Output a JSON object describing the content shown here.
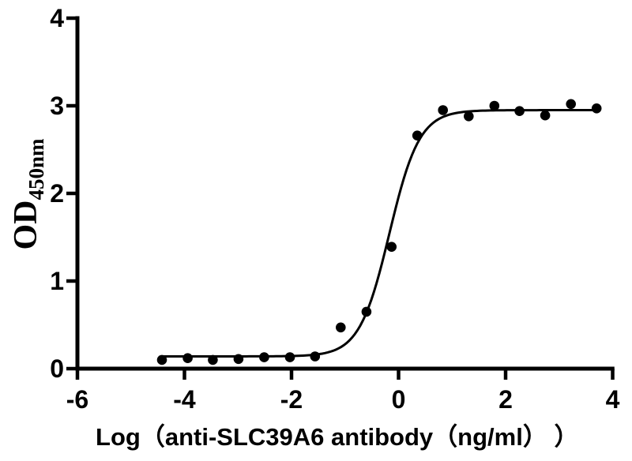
{
  "chart_data": {
    "type": "scatter",
    "title": "",
    "xlabel": "Log（anti-SLC39A6 antibody（ng/ml） ）",
    "ylabel_main": "OD",
    "ylabel_sub": "450nm",
    "xlim": [
      -6,
      4
    ],
    "ylim": [
      0,
      4
    ],
    "x_ticks": [
      -6,
      -4,
      -2,
      0,
      2,
      4
    ],
    "x_tick_labels": [
      "-6",
      "-4",
      "-2",
      "0",
      "2",
      "4"
    ],
    "y_ticks": [
      0,
      1,
      2,
      3,
      4
    ],
    "y_tick_labels": [
      "0",
      "1",
      "2",
      "3",
      "4"
    ],
    "grid": false,
    "legend_position": "none",
    "axis_color": "#000000",
    "marker_color": "#000000",
    "curve_color": "#000000",
    "background_color": "#ffffff",
    "points": [
      {
        "x": -4.42,
        "y": 0.1
      },
      {
        "x": -3.94,
        "y": 0.12
      },
      {
        "x": -3.47,
        "y": 0.1
      },
      {
        "x": -2.99,
        "y": 0.11
      },
      {
        "x": -2.51,
        "y": 0.13
      },
      {
        "x": -2.03,
        "y": 0.13
      },
      {
        "x": -1.56,
        "y": 0.14
      },
      {
        "x": -1.08,
        "y": 0.47
      },
      {
        "x": -0.6,
        "y": 0.65
      },
      {
        "x": -0.13,
        "y": 1.39
      },
      {
        "x": 0.35,
        "y": 2.66
      },
      {
        "x": 0.83,
        "y": 2.95
      },
      {
        "x": 1.31,
        "y": 2.88
      },
      {
        "x": 1.79,
        "y": 3.0
      },
      {
        "x": 2.26,
        "y": 2.94
      },
      {
        "x": 2.74,
        "y": 2.89
      },
      {
        "x": 3.22,
        "y": 3.02
      },
      {
        "x": 3.7,
        "y": 2.97
      }
    ],
    "fit_curve": {
      "model": "4PL",
      "bottom": 0.14,
      "top": 2.95,
      "logEC50": -0.17,
      "hill": 1.55,
      "x_start": -4.42,
      "x_end": 3.7
    }
  }
}
